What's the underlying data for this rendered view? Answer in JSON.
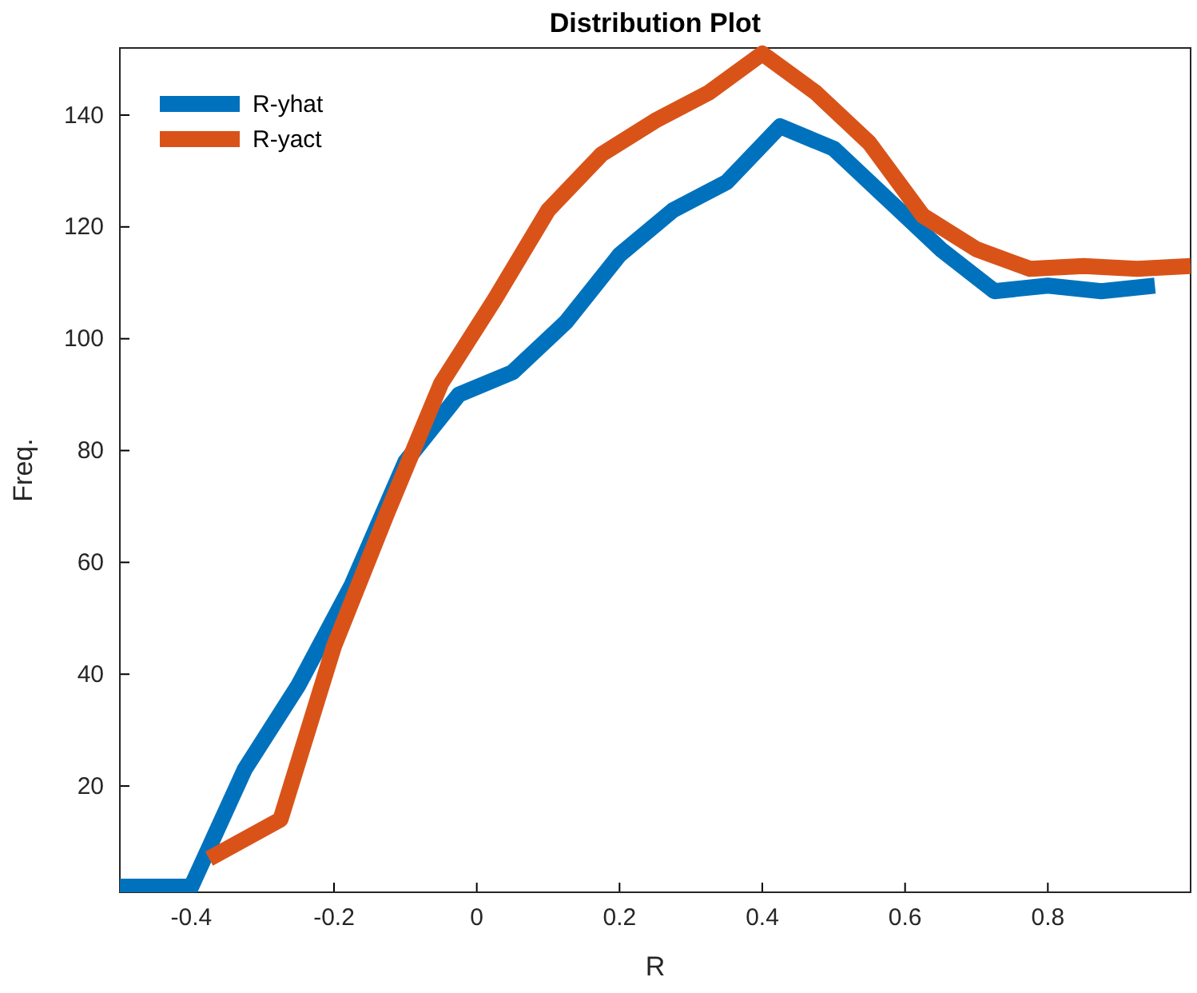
{
  "chart_data": {
    "type": "line",
    "title": "Distribution Plot",
    "xlabel": "R",
    "ylabel": "Freq.",
    "xlim": [
      -0.5,
      1.0
    ],
    "xticks": [
      -0.4,
      -0.2,
      0,
      0.2,
      0.4,
      0.6,
      0.8
    ],
    "ylim": [
      1,
      152
    ],
    "yticks": [
      20,
      40,
      60,
      80,
      100,
      120,
      140
    ],
    "grid": false,
    "legend": "top left",
    "line_style": "solid",
    "marker": "none",
    "series": [
      {
        "name": "R-yhat",
        "color": "#0072bd",
        "x": [
          -0.5,
          -0.4,
          -0.325,
          -0.25,
          -0.175,
          -0.1,
          -0.025,
          0.05,
          0.125,
          0.2,
          0.275,
          0.35,
          0.425,
          0.5,
          0.575,
          0.65,
          0.725,
          0.8,
          0.875,
          0.95
        ],
        "values": [
          2,
          2,
          23,
          38,
          56,
          78,
          90,
          94,
          103,
          115,
          123,
          128,
          138,
          134,
          125,
          116,
          108.5,
          109.5,
          108.5,
          109.5
        ]
      },
      {
        "name": "R-yact",
        "color": "#d95319",
        "x": [
          -0.375,
          -0.275,
          -0.2,
          -0.125,
          -0.05,
          0.025,
          0.1,
          0.175,
          0.25,
          0.325,
          0.4,
          0.475,
          0.55,
          0.625,
          0.7,
          0.775,
          0.85,
          0.925,
          1.0
        ],
        "values": [
          7,
          14,
          45,
          69,
          92,
          107,
          123,
          133,
          139,
          144,
          151,
          144,
          135,
          122,
          116,
          112.5,
          113,
          112.5,
          113
        ]
      }
    ]
  }
}
